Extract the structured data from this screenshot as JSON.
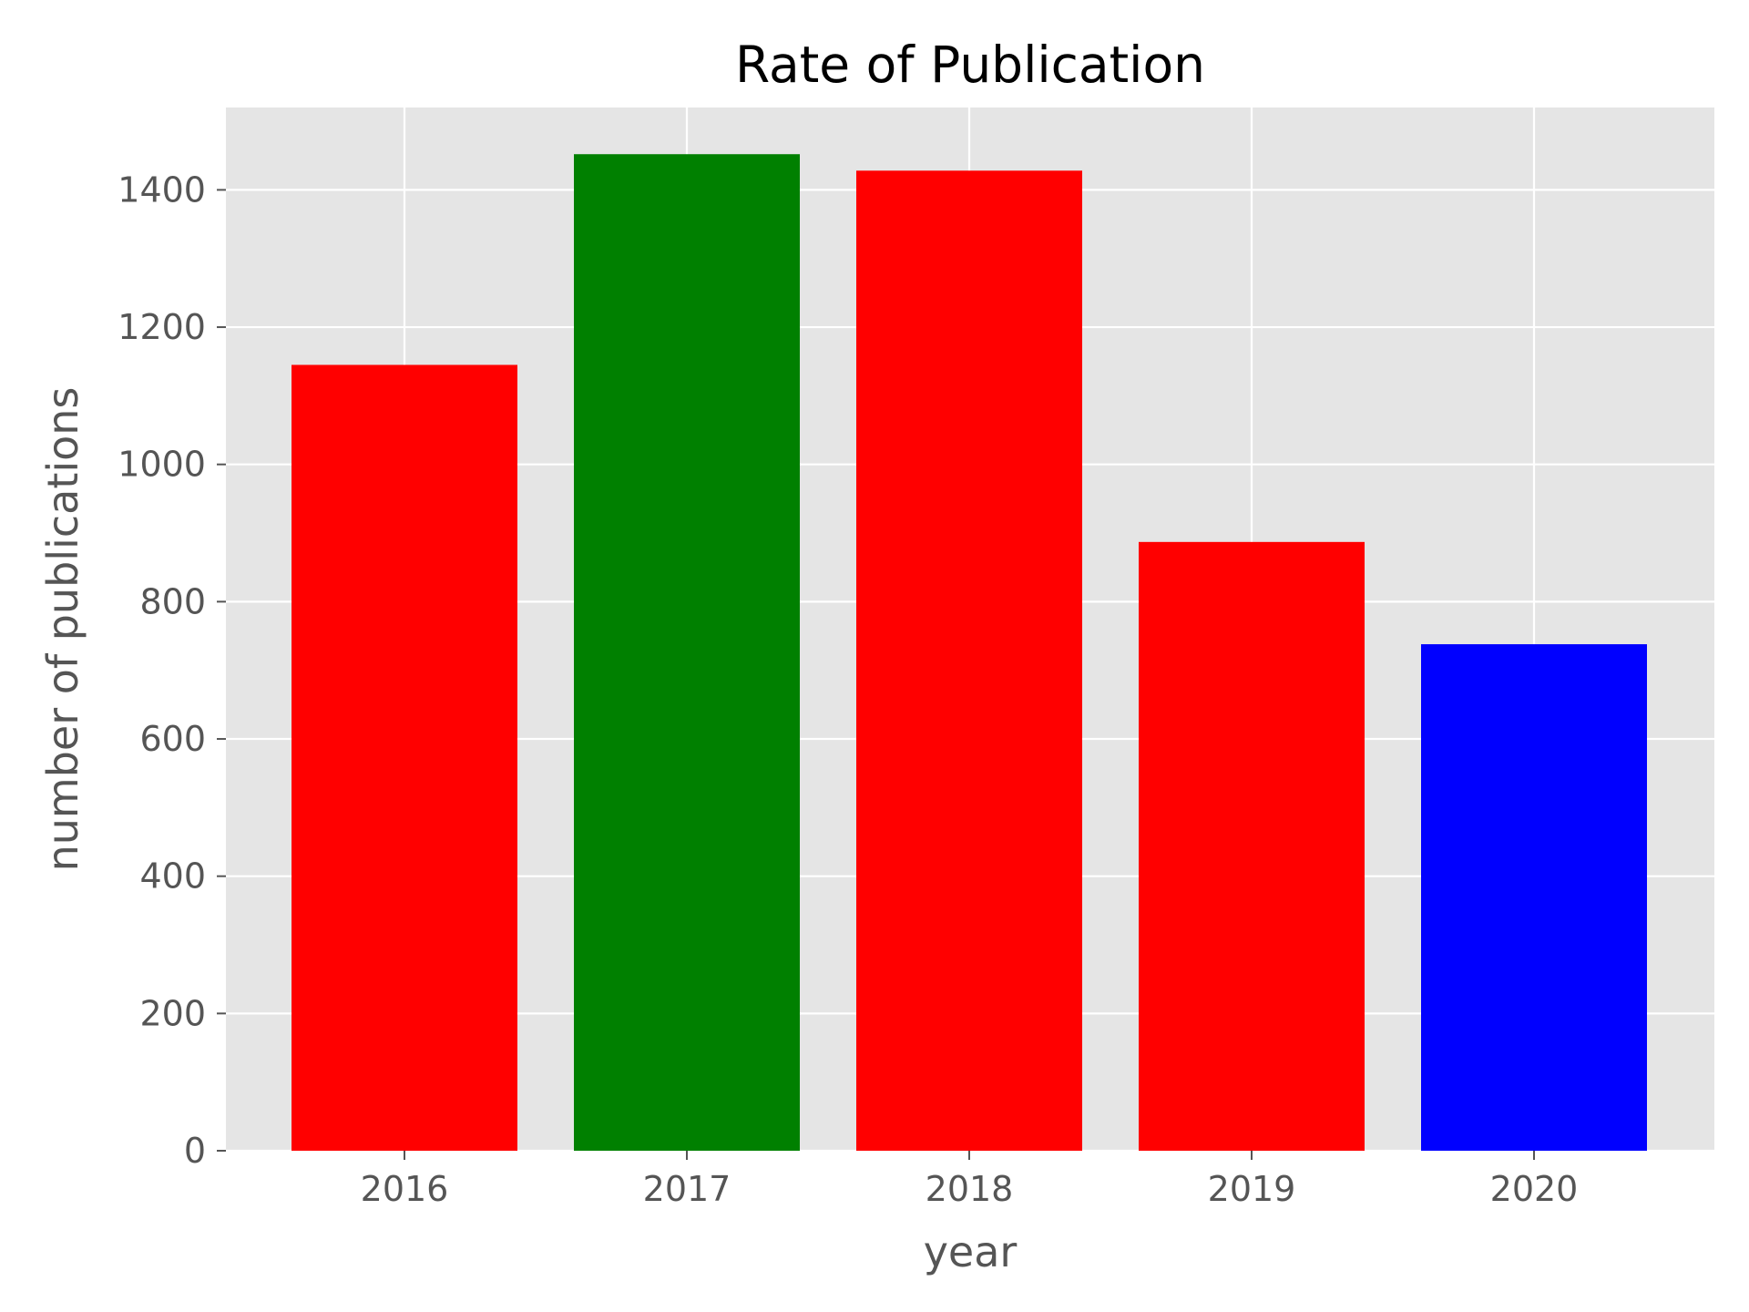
{
  "chart_data": {
    "type": "bar",
    "title": "Rate of Publication",
    "xlabel": "year",
    "ylabel": "number of publications",
    "categories": [
      "2016",
      "2017",
      "2018",
      "2019",
      "2020"
    ],
    "values": [
      1145,
      1452,
      1428,
      887,
      738
    ],
    "bar_colors": [
      "#ff0000",
      "#008000",
      "#ff0000",
      "#ff0000",
      "#0000ff"
    ],
    "ylim": [
      0,
      1520
    ],
    "yticks": [
      0,
      200,
      400,
      600,
      800,
      1000,
      1200,
      1400
    ],
    "grid": true,
    "background_color": "#e5e5e5",
    "grid_color": "#ffffff"
  }
}
